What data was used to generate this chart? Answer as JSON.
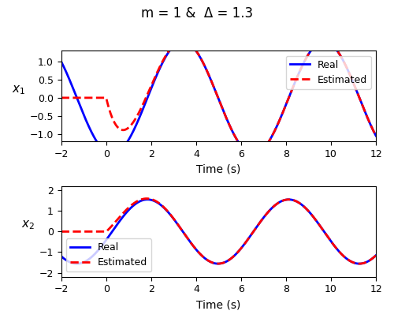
{
  "title": "m = 1 &  Δ = 1.3",
  "xlabel": "Time (s)",
  "ylabel1": "x$_1$",
  "ylabel2": "x$_2$",
  "xlim": [
    -2,
    12
  ],
  "ylim1": [
    -1.2,
    1.3
  ],
  "ylim2": [
    -2.2,
    2.2
  ],
  "xticks": [
    -2,
    0,
    2,
    4,
    6,
    8,
    10,
    12
  ],
  "yticks1": [
    -1,
    -0.5,
    0,
    0.5,
    1
  ],
  "yticks2": [
    -2,
    -1,
    0,
    1,
    2
  ],
  "real_color": "#0000FF",
  "estimated_color": "#FF0000",
  "real_lw": 2.0,
  "estimated_lw": 2.0,
  "omega": 1.0,
  "delta": 1.3,
  "t_start_real": -2,
  "t_end": 12,
  "t_switch": 0.0,
  "legend_loc1": "upper right",
  "legend_loc2": "lower left"
}
